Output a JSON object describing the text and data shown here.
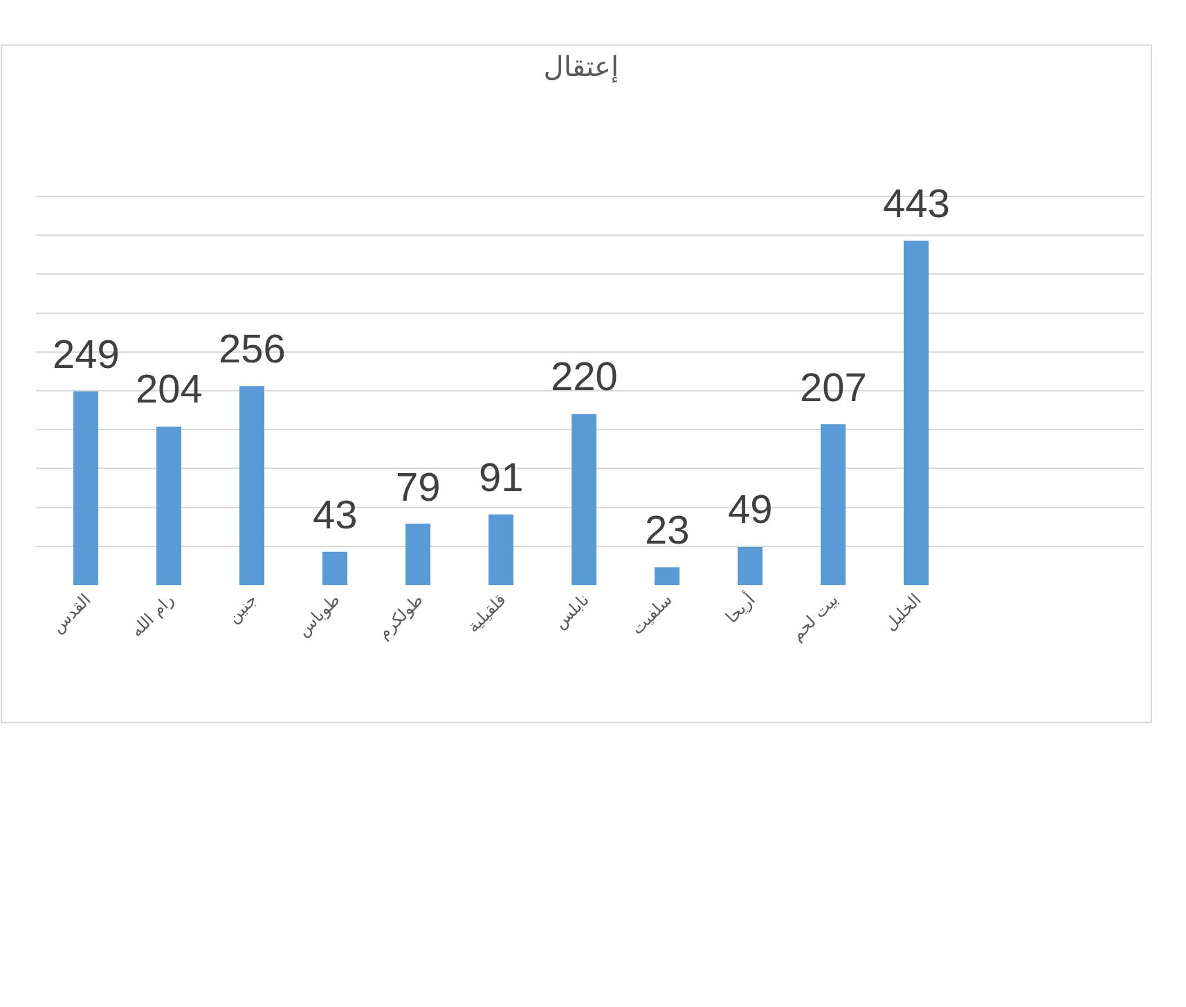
{
  "chart_data": {
    "type": "bar",
    "title": "إعتقال",
    "categories": [
      "القدس",
      "رام الله",
      "جنين",
      "طوباس",
      "طولكرم",
      "قلقيلية",
      "نابلس",
      "سلفيت",
      "أريحا",
      "بيت لحم",
      "الخليل"
    ],
    "values": [
      249,
      204,
      256,
      43,
      79,
      91,
      220,
      23,
      49,
      207,
      443
    ],
    "color": "#5b9bd5",
    "grid": "y",
    "tick_labels": "x",
    "data_labels": true
  }
}
